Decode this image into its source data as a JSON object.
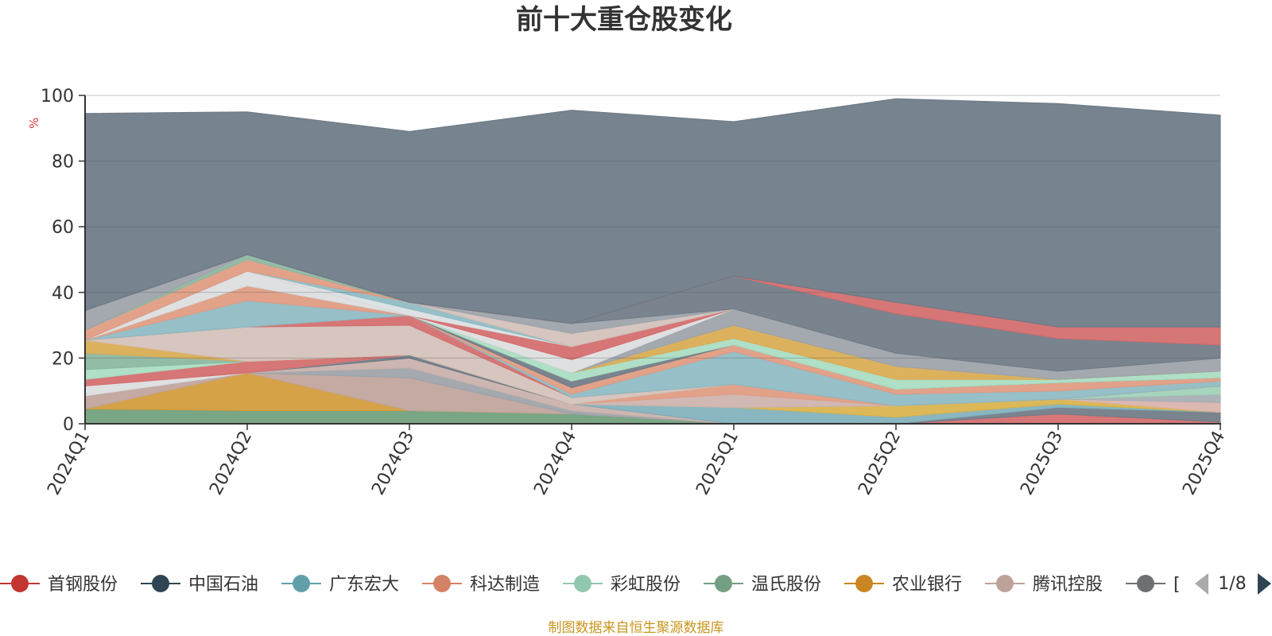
{
  "chart_data": {
    "type": "area",
    "title": "前十大重仓股变化",
    "ylabel": "%",
    "ylim": [
      0,
      100
    ],
    "yticks": [
      0,
      20,
      40,
      60,
      80,
      100
    ],
    "grid": true,
    "legend_position": "bottom",
    "categories": [
      "2024Q1",
      "2024Q2",
      "2024Q3",
      "2024Q4",
      "2025Q1",
      "2025Q2",
      "2025Q3",
      "2025Q4"
    ],
    "series": [
      {
        "name": "温氏股份",
        "color": "#6e9e7a",
        "values": [
          4.5,
          4,
          4,
          3,
          0,
          0,
          0,
          0
        ]
      },
      {
        "name": "农业银行",
        "color": "#d29a38",
        "values": [
          0,
          11.5,
          0,
          0,
          0,
          0,
          0,
          0
        ]
      },
      {
        "name": "腾讯控股",
        "color": "#bfa39a",
        "values": [
          4,
          0,
          10,
          0,
          0,
          0,
          0,
          0
        ]
      },
      {
        "name": "",
        "color": "#9ba2a8",
        "values": [
          0,
          0,
          3,
          1,
          0,
          0,
          0,
          0
        ]
      },
      {
        "name": "",
        "color": "#c9b0aa",
        "values": [
          0,
          0,
          3,
          2,
          0,
          0,
          0,
          0
        ]
      },
      {
        "name": "中国石油",
        "color": "#6a7886",
        "values": [
          0,
          0,
          1,
          0,
          0,
          0,
          0,
          0
        ]
      },
      {
        "name": "首钢股份",
        "color": "#d46a6a",
        "values": [
          0,
          0,
          0,
          0,
          0,
          0,
          3,
          0.5
        ]
      },
      {
        "name": "",
        "color": "#6f7a86",
        "values": [
          0,
          0,
          0,
          0,
          0,
          0,
          2,
          3
        ]
      },
      {
        "name": "广东宏大",
        "color": "#7fb0bb",
        "values": [
          0,
          0,
          0,
          0,
          5,
          2,
          1,
          0
        ]
      },
      {
        "name": "",
        "color": "#d9b24a",
        "values": [
          0,
          0,
          0,
          0,
          0,
          3.5,
          1.5,
          0
        ]
      },
      {
        "name": "",
        "color": "#d9b2ac",
        "values": [
          0,
          0,
          0,
          0,
          0,
          0,
          0,
          3
        ]
      },
      {
        "name": "",
        "color": "#a5acb2",
        "values": [
          0,
          0,
          0,
          0,
          0,
          0,
          0,
          2.5
        ]
      },
      {
        "name": "彩虹股份",
        "color": "#9fd0b6",
        "values": [
          0,
          0,
          0,
          0,
          0,
          0,
          0,
          2.5
        ]
      },
      {
        "name": "",
        "color": "#cdb2ac",
        "values": [
          0,
          0,
          0,
          0,
          4,
          0,
          0,
          0
        ]
      },
      {
        "name": "科达制造",
        "color": "#e09a80",
        "values": [
          0,
          0,
          0,
          0,
          3,
          0,
          0,
          0
        ]
      },
      {
        "name": "",
        "color": "#8dbac2",
        "values": [
          0,
          0,
          0,
          0,
          0,
          0,
          0,
          0
        ]
      },
      {
        "name": "",
        "color": "#dcdde0",
        "values": [
          3,
          0,
          0,
          0,
          0,
          0,
          0,
          0
        ]
      },
      {
        "name": "",
        "color": "#d46a6a",
        "values": [
          2,
          3.5,
          0,
          0,
          0,
          0,
          0,
          0
        ]
      },
      {
        "name": "",
        "color": "#a8dcc1",
        "values": [
          3,
          0,
          0,
          0,
          0,
          0,
          0,
          0
        ]
      },
      {
        "name": "",
        "color": "#8ab6a0",
        "values": [
          5,
          0,
          0,
          0,
          0,
          0,
          0,
          0
        ]
      },
      {
        "name": "",
        "color": "#d9aa50",
        "values": [
          4,
          0,
          0,
          0,
          0,
          0,
          0,
          0
        ]
      },
      {
        "name": "",
        "color": "#d4c0ba",
        "values": [
          0,
          10.5,
          9,
          2,
          0,
          0,
          0,
          0
        ]
      },
      {
        "name": "",
        "color": "#a8dcc1",
        "values": [
          0,
          0,
          0,
          0,
          0,
          0,
          0,
          0
        ]
      },
      {
        "name": "",
        "color": "#d46a6a",
        "values": [
          0,
          0,
          3,
          0,
          0,
          0,
          0,
          0
        ]
      },
      {
        "name": "",
        "color": "#8dbac2",
        "values": [
          0,
          8,
          0,
          1,
          10,
          3.5,
          2.5,
          1.5
        ]
      },
      {
        "name": "",
        "color": "#e09a80",
        "values": [
          0,
          4.5,
          0,
          2,
          2,
          1.5,
          2.5,
          1
        ]
      },
      {
        "name": "",
        "color": "#6f7a86",
        "values": [
          0,
          0,
          0,
          2,
          0,
          0,
          0,
          0
        ]
      },
      {
        "name": "",
        "color": "#a8dcc1",
        "values": [
          0,
          0,
          0,
          2.5,
          2,
          3,
          1,
          2
        ]
      },
      {
        "name": "",
        "color": "#d9aa50",
        "values": [
          0,
          0,
          0,
          0,
          4,
          4,
          0,
          0
        ]
      },
      {
        "name": "",
        "color": "#9ba2a8",
        "values": [
          0,
          0,
          0,
          0,
          5,
          4,
          2.5,
          4
        ]
      },
      {
        "name": "",
        "color": "#dcdde0",
        "values": [
          0,
          4.5,
          0,
          4,
          0,
          0,
          0,
          0
        ]
      },
      {
        "name": "",
        "color": "#d46a6a",
        "values": [
          0,
          0,
          0,
          4,
          0,
          0,
          0,
          0
        ]
      },
      {
        "name": "",
        "color": "#dadfe2",
        "values": [
          0,
          0,
          2,
          0,
          0,
          0,
          0,
          0
        ]
      },
      {
        "name": "",
        "color": "#8dbac2",
        "values": [
          0,
          0,
          2,
          0,
          0,
          0,
          0,
          0
        ]
      },
      {
        "name": "",
        "color": "#e09a80",
        "values": [
          3,
          3.5,
          0,
          0,
          0,
          0,
          0,
          0
        ]
      },
      {
        "name": "",
        "color": "#8ab6a0",
        "values": [
          0,
          1.5,
          0,
          0,
          0,
          0,
          0,
          0
        ]
      },
      {
        "name": "",
        "color": "#d4c0ba",
        "values": [
          0,
          0,
          0,
          4,
          0,
          0,
          0,
          0
        ]
      },
      {
        "name": "",
        "color": "#9ba2a8",
        "values": [
          6,
          0,
          0,
          3,
          0,
          0,
          0,
          0
        ]
      },
      {
        "name": "",
        "color": "#6f7a86",
        "values": [
          0,
          0,
          0,
          0,
          10,
          12,
          10,
          4
        ]
      },
      {
        "name": "",
        "color": "#d46a6a",
        "values": [
          0,
          0,
          0,
          0,
          0,
          3.5,
          3.5,
          5.5
        ]
      },
      {
        "name": "",
        "color": "#6b7885",
        "values": [
          60,
          43.5,
          52,
          65,
          47,
          62,
          68,
          64.5
        ]
      }
    ]
  },
  "legend": {
    "items": [
      {
        "label": "首钢股份",
        "color": "#c23531"
      },
      {
        "label": "中国石油",
        "color": "#2f4554"
      },
      {
        "label": "广东宏大",
        "color": "#61a0a8"
      },
      {
        "label": "科达制造",
        "color": "#d48265"
      },
      {
        "label": "彩虹股份",
        "color": "#91c7ae"
      },
      {
        "label": "温氏股份",
        "color": "#749f83"
      },
      {
        "label": "农业银行",
        "color": "#ca8622"
      },
      {
        "label": "腾讯控股",
        "color": "#bda29a"
      },
      {
        "label": "[",
        "color": "#6e7074"
      }
    ],
    "page": "1/8"
  },
  "footer": {
    "text": "制图数据来自恒生聚源数据库",
    "color": "#c8961e"
  },
  "colors": {
    "axis": "#333333",
    "grid": "#555555",
    "title": "#333333",
    "unit": "#dd3333"
  }
}
